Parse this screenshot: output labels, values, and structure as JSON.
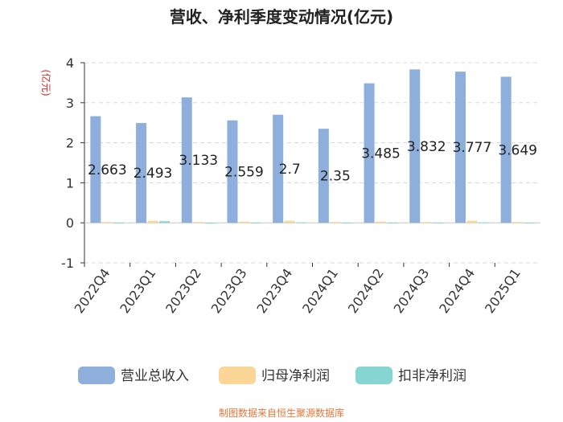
{
  "chart_data": {
    "type": "bar",
    "title": "营收、净利季度变动情况(亿元)",
    "ylabel": "(亿元)",
    "ylim": [
      -1,
      4
    ],
    "yticks": [
      "-1",
      "0",
      "1",
      "2",
      "3",
      "4"
    ],
    "grid": true,
    "legend_position": "bottom",
    "categories": [
      "2022Q4",
      "2023Q1",
      "2023Q2",
      "2023Q3",
      "2023Q4",
      "2024Q1",
      "2024Q2",
      "2024Q3",
      "2024Q4",
      "2025Q1"
    ],
    "series": [
      {
        "name": "营业总收入",
        "color": "#8eaedc",
        "values": [
          2.663,
          2.493,
          3.133,
          2.559,
          2.7,
          2.35,
          3.485,
          3.832,
          3.777,
          3.649
        ],
        "labels": [
          "2.663",
          "2.493",
          "3.133",
          "2.559",
          "2.7",
          "2.35",
          "3.485",
          "3.832",
          "3.777",
          "3.649"
        ]
      },
      {
        "name": "归母净利润",
        "color": "#fbd697",
        "values": [
          0.02,
          0.05,
          0.02,
          0.03,
          0.05,
          0.02,
          0.03,
          0.02,
          0.05,
          0.02
        ]
      },
      {
        "name": "扣非净利润",
        "color": "#86d5d1",
        "values": [
          -0.01,
          0.04,
          -0.02,
          -0.01,
          0.01,
          -0.01,
          -0.01,
          -0.01,
          0.01,
          -0.01
        ]
      }
    ]
  },
  "footer": "制图数据来自恒生聚源数据库",
  "colors": {
    "title": "#222222",
    "axis": "#333333",
    "ylabel": "#e02020",
    "grid": "#d8d8d8",
    "footer": "#e8773a"
  }
}
